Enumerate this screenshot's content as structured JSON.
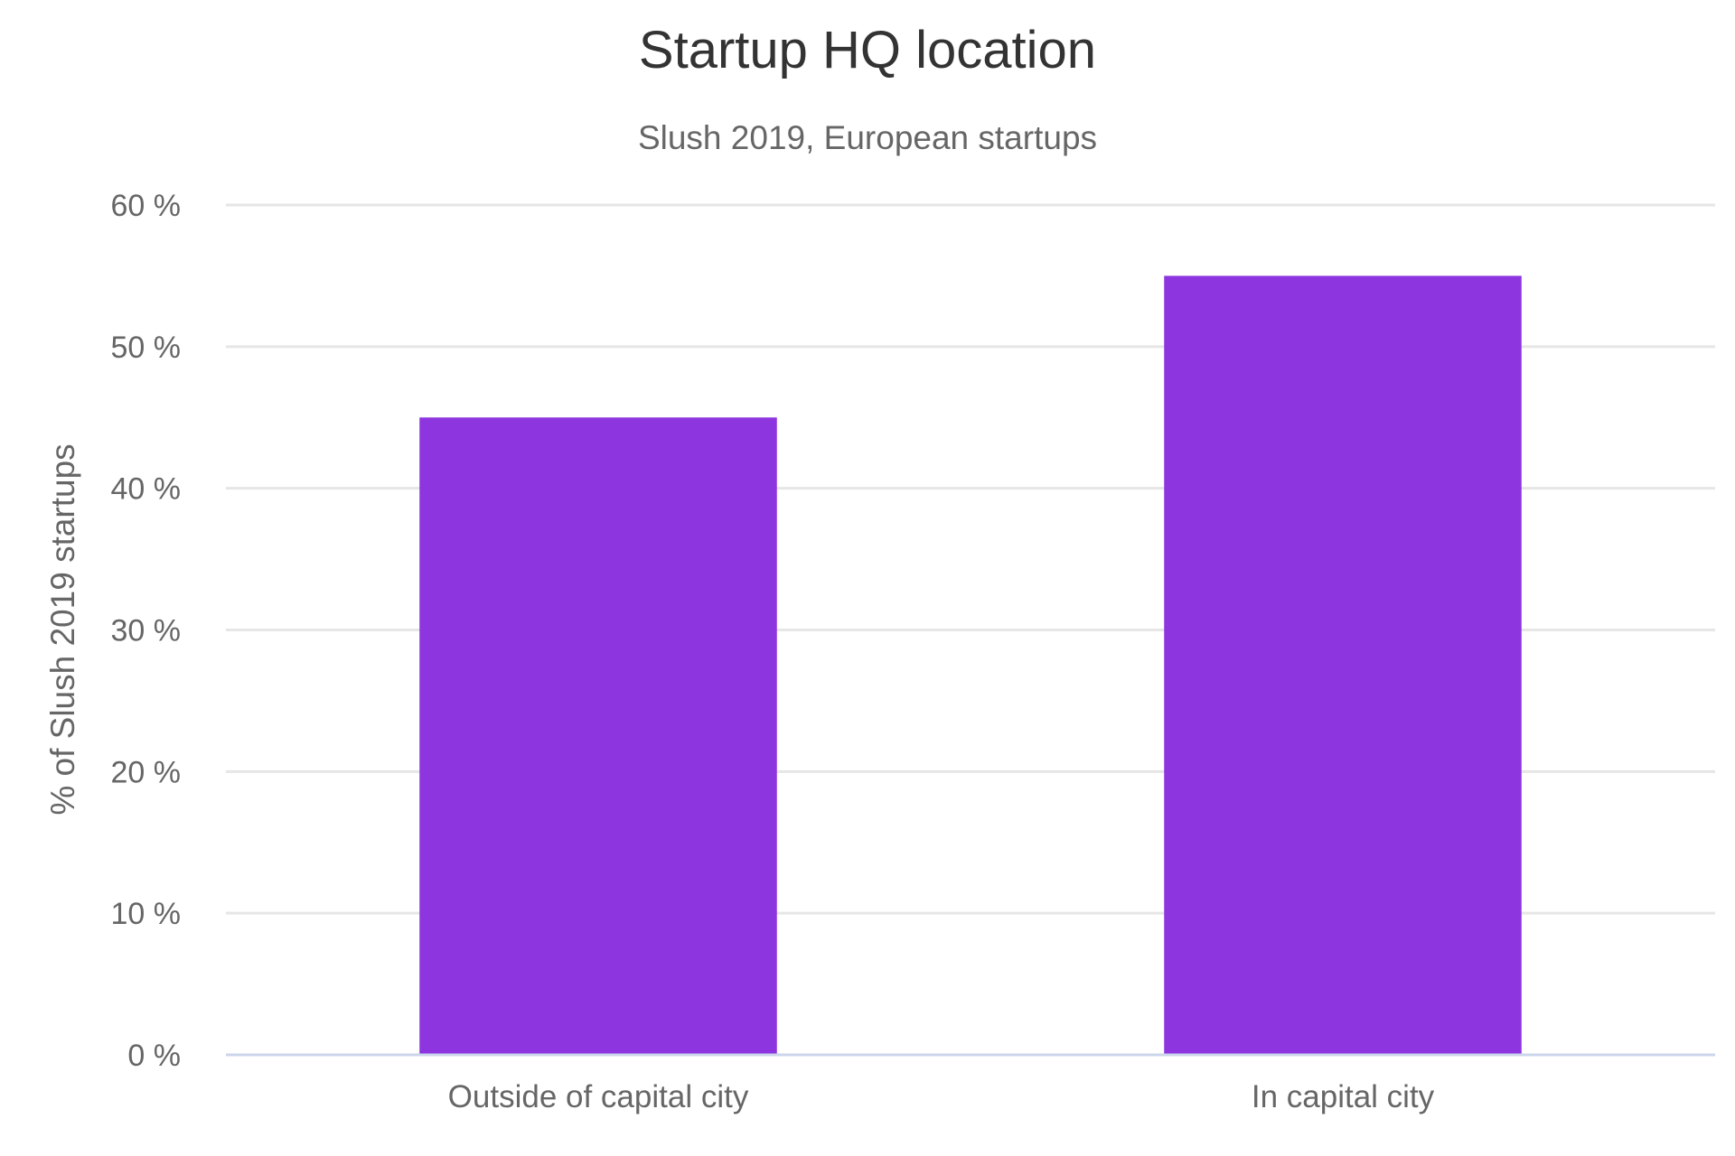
{
  "chart_data": {
    "type": "bar",
    "title": "Startup HQ location",
    "subtitle": "Slush 2019, European startups",
    "xlabel": "",
    "ylabel": "% of Slush 2019 startups",
    "categories": [
      "Outside of capital city",
      "In capital city"
    ],
    "values": [
      45,
      55
    ],
    "ylim": [
      0,
      60
    ],
    "yticks": [
      0,
      10,
      20,
      30,
      40,
      50,
      60
    ],
    "ytick_labels": [
      "0 %",
      "10 %",
      "20 %",
      "30 %",
      "40 %",
      "50 %",
      "60 %"
    ],
    "grid": true,
    "legend": "none",
    "bar_color": "#8d35df",
    "grid_color": "#e6e6e6",
    "baseline_color": "#ccd6eb"
  }
}
